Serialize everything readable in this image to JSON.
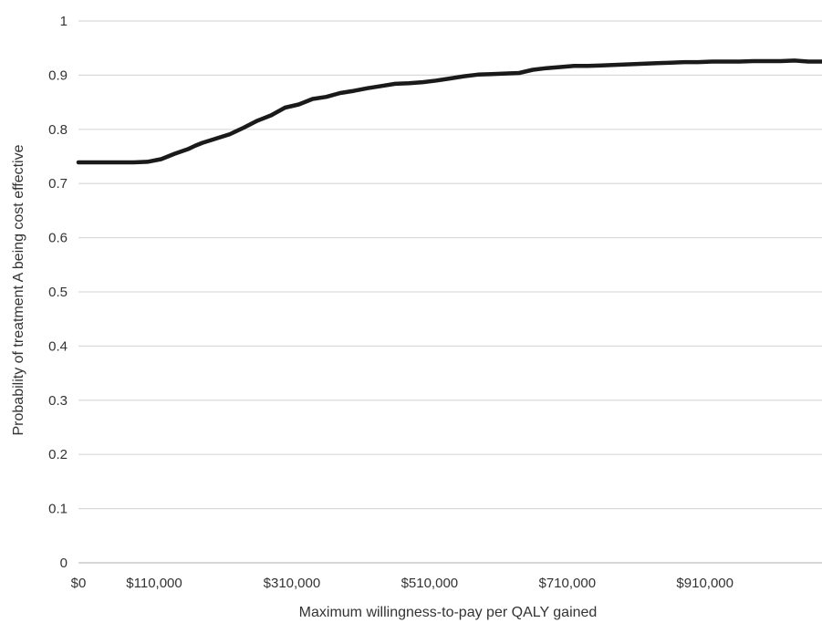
{
  "chart_data": {
    "type": "line",
    "title": "",
    "xlabel": "Maximum willingness-to-pay per QALY gained",
    "ylabel": "Probability of treatment A being cost effective",
    "xlim": [
      0,
      1080000
    ],
    "ylim": [
      0,
      1
    ],
    "grid": "horizontal",
    "legend": "none",
    "x_ticks": [
      {
        "value": 0,
        "label": "$0"
      },
      {
        "value": 110000,
        "label": "$110,000"
      },
      {
        "value": 310000,
        "label": "$310,000"
      },
      {
        "value": 510000,
        "label": "$510,000"
      },
      {
        "value": 710000,
        "label": "$710,000"
      },
      {
        "value": 910000,
        "label": "$910,000"
      }
    ],
    "y_ticks": [
      {
        "value": 0,
        "label": "0"
      },
      {
        "value": 0.1,
        "label": "0.1"
      },
      {
        "value": 0.2,
        "label": "0.2"
      },
      {
        "value": 0.3,
        "label": "0.3"
      },
      {
        "value": 0.4,
        "label": "0.4"
      },
      {
        "value": 0.5,
        "label": "0.5"
      },
      {
        "value": 0.6,
        "label": "0.6"
      },
      {
        "value": 0.7,
        "label": "0.7"
      },
      {
        "value": 0.8,
        "label": "0.8"
      },
      {
        "value": 0.9,
        "label": "0.9"
      },
      {
        "value": 1,
        "label": "1"
      }
    ],
    "series": [
      {
        "color": "#1a1a1a",
        "x": [
          0,
          20000,
          40000,
          60000,
          70000,
          80000,
          100000,
          120000,
          140000,
          160000,
          170000,
          180000,
          200000,
          220000,
          240000,
          260000,
          280000,
          300000,
          320000,
          340000,
          360000,
          380000,
          400000,
          420000,
          440000,
          460000,
          480000,
          500000,
          520000,
          540000,
          560000,
          580000,
          600000,
          620000,
          640000,
          660000,
          680000,
          700000,
          720000,
          740000,
          760000,
          780000,
          800000,
          820000,
          840000,
          860000,
          880000,
          900000,
          920000,
          940000,
          960000,
          980000,
          1000000,
          1020000,
          1040000,
          1060000,
          1080000
        ],
        "y": [
          0.739,
          0.739,
          0.739,
          0.739,
          0.739,
          0.739,
          0.74,
          0.745,
          0.755,
          0.764,
          0.77,
          0.775,
          0.783,
          0.791,
          0.803,
          0.816,
          0.826,
          0.84,
          0.846,
          0.856,
          0.86,
          0.867,
          0.871,
          0.876,
          0.88,
          0.884,
          0.885,
          0.887,
          0.89,
          0.894,
          0.898,
          0.901,
          0.902,
          0.903,
          0.904,
          0.91,
          0.913,
          0.915,
          0.917,
          0.917,
          0.918,
          0.919,
          0.92,
          0.921,
          0.922,
          0.923,
          0.924,
          0.924,
          0.925,
          0.925,
          0.925,
          0.926,
          0.926,
          0.926,
          0.927,
          0.925,
          0.925
        ]
      }
    ]
  }
}
